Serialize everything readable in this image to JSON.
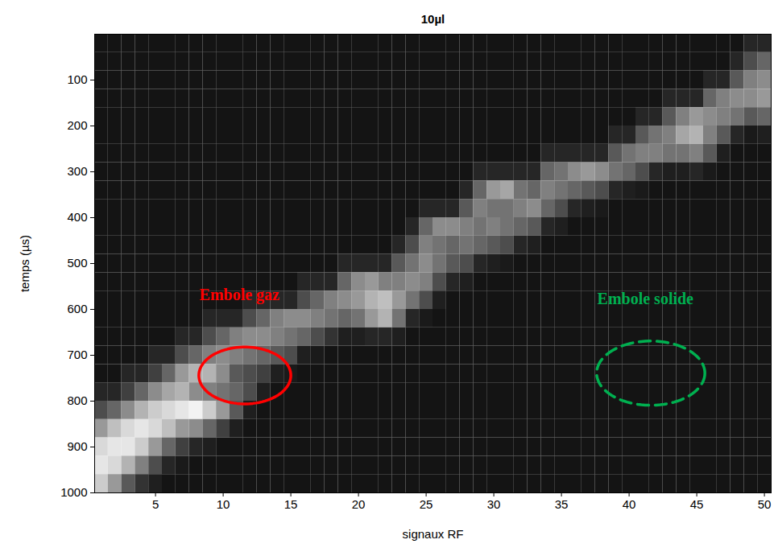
{
  "chart_data": {
    "type": "heatmap",
    "title": "10µl",
    "x_label": "signaux RF",
    "y_label": "temps (µs)",
    "xlim": [
      0.5,
      50.5
    ],
    "xticks": [
      5,
      10,
      15,
      20,
      25,
      30,
      35,
      40,
      45,
      50
    ],
    "ylim": [
      0,
      1000
    ],
    "yticks": [
      100,
      200,
      300,
      400,
      500,
      600,
      700,
      800,
      900,
      1000
    ],
    "value_range": [
      0,
      100
    ],
    "x": [
      1,
      2,
      3,
      4,
      5,
      6,
      7,
      8,
      9,
      10,
      11,
      12,
      13,
      14,
      15,
      16,
      17,
      18,
      19,
      20,
      21,
      22,
      23,
      24,
      25,
      26,
      27,
      28,
      29,
      30,
      31,
      32,
      33,
      34,
      35,
      36,
      37,
      38,
      39,
      40,
      41,
      42,
      43,
      44,
      45,
      46,
      47,
      48,
      49,
      50
    ],
    "y": [
      20,
      60,
      100,
      140,
      180,
      220,
      260,
      300,
      340,
      380,
      420,
      460,
      500,
      540,
      580,
      620,
      660,
      700,
      740,
      780,
      820,
      860,
      900,
      940,
      980
    ],
    "values": [
      [
        8,
        8,
        8,
        8,
        8,
        8,
        8,
        8,
        8,
        8,
        8,
        8,
        8,
        8,
        8,
        8,
        8,
        8,
        8,
        15,
        30,
        60,
        85,
        90,
        80
      ],
      [
        8,
        8,
        8,
        8,
        8,
        8,
        8,
        8,
        8,
        8,
        8,
        8,
        8,
        8,
        8,
        8,
        8,
        8,
        8,
        15,
        40,
        75,
        90,
        85,
        60
      ],
      [
        8,
        8,
        8,
        8,
        8,
        8,
        8,
        8,
        8,
        8,
        8,
        8,
        8,
        8,
        8,
        8,
        8,
        8,
        15,
        25,
        55,
        85,
        90,
        70,
        35
      ],
      [
        8,
        8,
        8,
        8,
        8,
        8,
        8,
        8,
        8,
        8,
        8,
        8,
        8,
        8,
        8,
        8,
        8,
        8,
        15,
        40,
        70,
        90,
        80,
        50,
        20
      ],
      [
        8,
        8,
        8,
        8,
        8,
        8,
        8,
        8,
        8,
        8,
        8,
        8,
        8,
        8,
        8,
        8,
        8,
        15,
        25,
        55,
        80,
        85,
        60,
        30,
        12
      ],
      [
        8,
        8,
        8,
        8,
        8,
        8,
        8,
        8,
        8,
        8,
        8,
        8,
        8,
        8,
        8,
        8,
        8,
        15,
        40,
        65,
        85,
        75,
        40,
        15,
        8
      ],
      [
        8,
        8,
        8,
        8,
        8,
        8,
        8,
        8,
        8,
        8,
        8,
        8,
        8,
        8,
        8,
        8,
        15,
        30,
        60,
        70,
        90,
        60,
        25,
        10,
        8
      ],
      [
        8,
        8,
        8,
        8,
        8,
        8,
        8,
        8,
        8,
        8,
        8,
        8,
        8,
        8,
        8,
        8,
        15,
        40,
        70,
        55,
        95,
        55,
        15,
        8,
        8
      ],
      [
        8,
        8,
        8,
        8,
        8,
        8,
        8,
        8,
        8,
        8,
        8,
        8,
        8,
        8,
        8,
        15,
        30,
        50,
        70,
        50,
        80,
        40,
        12,
        8,
        8
      ],
      [
        8,
        8,
        8,
        8,
        8,
        8,
        8,
        8,
        8,
        8,
        8,
        8,
        8,
        8,
        8,
        15,
        40,
        55,
        55,
        45,
        60,
        25,
        8,
        8,
        8
      ],
      [
        8,
        8,
        8,
        8,
        8,
        8,
        8,
        8,
        8,
        8,
        8,
        8,
        8,
        8,
        8,
        15,
        50,
        50,
        35,
        40,
        35,
        12,
        8,
        8,
        8
      ],
      [
        8,
        8,
        8,
        8,
        8,
        8,
        8,
        8,
        8,
        8,
        8,
        8,
        8,
        8,
        15,
        30,
        55,
        45,
        30,
        30,
        12,
        8,
        8,
        8,
        8
      ],
      [
        8,
        8,
        8,
        8,
        8,
        8,
        8,
        8,
        8,
        8,
        8,
        8,
        8,
        8,
        15,
        40,
        55,
        40,
        25,
        12,
        8,
        8,
        8,
        8,
        8
      ],
      [
        8,
        8,
        8,
        8,
        8,
        8,
        8,
        8,
        8,
        8,
        8,
        8,
        8,
        8,
        15,
        50,
        50,
        35,
        12,
        8,
        8,
        8,
        8,
        8,
        8
      ],
      [
        8,
        8,
        8,
        8,
        8,
        8,
        8,
        8,
        8,
        8,
        8,
        8,
        8,
        8,
        15,
        55,
        45,
        30,
        10,
        8,
        8,
        8,
        8,
        8,
        8
      ],
      [
        8,
        8,
        8,
        8,
        8,
        8,
        8,
        8,
        8,
        8,
        8,
        8,
        8,
        15,
        30,
        55,
        40,
        12,
        8,
        8,
        8,
        8,
        8,
        8,
        8
      ],
      [
        8,
        8,
        8,
        8,
        8,
        8,
        8,
        8,
        8,
        8,
        8,
        8,
        8,
        15,
        40,
        50,
        30,
        10,
        8,
        8,
        8,
        8,
        8,
        8,
        8
      ],
      [
        8,
        8,
        8,
        8,
        8,
        8,
        8,
        8,
        8,
        8,
        8,
        8,
        8,
        15,
        50,
        45,
        20,
        8,
        8,
        8,
        8,
        8,
        8,
        8,
        8
      ],
      [
        8,
        8,
        8,
        8,
        8,
        8,
        8,
        8,
        8,
        8,
        8,
        8,
        15,
        40,
        55,
        40,
        12,
        8,
        8,
        8,
        8,
        8,
        8,
        8,
        8
      ],
      [
        8,
        8,
        8,
        8,
        8,
        8,
        8,
        8,
        8,
        8,
        8,
        8,
        15,
        55,
        60,
        45,
        12,
        8,
        8,
        8,
        8,
        8,
        8,
        8,
        8
      ],
      [
        8,
        8,
        8,
        8,
        8,
        8,
        8,
        8,
        8,
        8,
        8,
        8,
        15,
        60,
        70,
        60,
        15,
        8,
        8,
        8,
        8,
        8,
        8,
        8,
        8
      ],
      [
        8,
        8,
        8,
        8,
        8,
        8,
        8,
        8,
        8,
        8,
        8,
        8,
        15,
        50,
        75,
        70,
        15,
        8,
        8,
        8,
        8,
        8,
        8,
        8,
        8
      ],
      [
        8,
        8,
        8,
        8,
        8,
        8,
        8,
        8,
        8,
        8,
        8,
        15,
        35,
        50,
        60,
        45,
        12,
        8,
        8,
        8,
        8,
        8,
        8,
        8,
        8
      ],
      [
        8,
        8,
        8,
        8,
        8,
        8,
        8,
        8,
        8,
        8,
        15,
        30,
        45,
        55,
        45,
        15,
        8,
        8,
        8,
        8,
        8,
        8,
        8,
        8,
        8
      ],
      [
        8,
        8,
        8,
        8,
        8,
        8,
        8,
        8,
        8,
        15,
        40,
        50,
        55,
        50,
        30,
        10,
        8,
        8,
        8,
        8,
        8,
        8,
        8,
        8,
        8
      ],
      [
        8,
        8,
        8,
        8,
        8,
        8,
        8,
        8,
        8,
        15,
        55,
        45,
        45,
        30,
        12,
        8,
        8,
        8,
        8,
        8,
        8,
        8,
        8,
        8,
        8
      ],
      [
        8,
        8,
        8,
        8,
        8,
        8,
        8,
        8,
        8,
        15,
        55,
        40,
        35,
        15,
        8,
        8,
        8,
        8,
        8,
        8,
        8,
        8,
        8,
        8,
        8
      ],
      [
        8,
        8,
        8,
        8,
        8,
        8,
        8,
        8,
        15,
        35,
        50,
        45,
        30,
        12,
        8,
        8,
        8,
        8,
        8,
        8,
        8,
        8,
        8,
        8,
        8
      ],
      [
        8,
        8,
        8,
        8,
        8,
        8,
        8,
        15,
        40,
        50,
        45,
        40,
        15,
        8,
        8,
        8,
        8,
        8,
        8,
        8,
        8,
        8,
        8,
        8,
        8
      ],
      [
        8,
        8,
        8,
        8,
        8,
        8,
        8,
        15,
        60,
        45,
        50,
        35,
        12,
        8,
        8,
        8,
        8,
        8,
        8,
        8,
        8,
        8,
        8,
        8,
        8
      ],
      [
        8,
        8,
        8,
        8,
        8,
        8,
        8,
        15,
        65,
        45,
        45,
        30,
        10,
        8,
        8,
        8,
        8,
        8,
        8,
        8,
        8,
        8,
        8,
        8,
        8
      ],
      [
        8,
        8,
        8,
        8,
        8,
        8,
        8,
        15,
        45,
        50,
        40,
        15,
        8,
        8,
        8,
        8,
        8,
        8,
        8,
        8,
        8,
        8,
        8,
        8,
        8
      ],
      [
        8,
        8,
        8,
        8,
        8,
        8,
        8,
        15,
        40,
        55,
        35,
        12,
        8,
        8,
        8,
        8,
        8,
        8,
        8,
        8,
        8,
        8,
        8,
        8,
        8
      ],
      [
        8,
        8,
        8,
        8,
        8,
        8,
        15,
        40,
        50,
        40,
        15,
        8,
        8,
        8,
        8,
        8,
        8,
        8,
        8,
        8,
        8,
        8,
        8,
        8,
        8
      ],
      [
        8,
        8,
        8,
        8,
        8,
        8,
        15,
        45,
        45,
        30,
        12,
        8,
        8,
        8,
        8,
        8,
        8,
        8,
        8,
        8,
        8,
        8,
        8,
        8,
        8
      ],
      [
        8,
        8,
        8,
        8,
        8,
        8,
        15,
        55,
        40,
        15,
        8,
        8,
        8,
        8,
        8,
        8,
        8,
        8,
        8,
        8,
        8,
        8,
        8,
        8,
        8
      ],
      [
        8,
        8,
        8,
        8,
        8,
        8,
        15,
        60,
        35,
        12,
        8,
        8,
        8,
        8,
        8,
        8,
        8,
        8,
        8,
        8,
        8,
        8,
        8,
        8,
        8
      ],
      [
        8,
        8,
        8,
        8,
        8,
        8,
        15,
        55,
        30,
        10,
        8,
        8,
        8,
        8,
        8,
        8,
        8,
        8,
        8,
        8,
        8,
        8,
        8,
        8,
        8
      ],
      [
        8,
        8,
        8,
        8,
        8,
        15,
        35,
        45,
        15,
        8,
        8,
        8,
        8,
        8,
        8,
        8,
        8,
        8,
        8,
        8,
        8,
        8,
        8,
        8,
        8
      ],
      [
        8,
        8,
        8,
        8,
        8,
        15,
        45,
        40,
        12,
        8,
        8,
        8,
        8,
        8,
        8,
        8,
        8,
        8,
        8,
        8,
        8,
        8,
        8,
        8,
        8
      ],
      [
        8,
        8,
        8,
        8,
        15,
        35,
        50,
        30,
        10,
        8,
        8,
        8,
        8,
        8,
        8,
        8,
        8,
        8,
        8,
        8,
        8,
        8,
        8,
        8,
        8
      ],
      [
        8,
        8,
        8,
        8,
        15,
        45,
        50,
        15,
        8,
        8,
        8,
        8,
        8,
        8,
        8,
        8,
        8,
        8,
        8,
        8,
        8,
        8,
        8,
        8,
        8
      ],
      [
        8,
        8,
        8,
        15,
        35,
        50,
        45,
        12,
        8,
        8,
        8,
        8,
        8,
        8,
        8,
        8,
        8,
        8,
        8,
        8,
        8,
        8,
        8,
        8,
        8
      ],
      [
        8,
        8,
        8,
        15,
        50,
        65,
        45,
        12,
        8,
        8,
        8,
        8,
        8,
        8,
        8,
        8,
        8,
        8,
        8,
        8,
        8,
        8,
        8,
        8,
        8
      ],
      [
        8,
        8,
        8,
        15,
        60,
        70,
        50,
        15,
        8,
        8,
        8,
        8,
        8,
        8,
        8,
        8,
        8,
        8,
        8,
        8,
        8,
        8,
        8,
        8,
        8
      ],
      [
        8,
        8,
        15,
        40,
        55,
        50,
        35,
        10,
        8,
        8,
        8,
        8,
        8,
        8,
        8,
        8,
        8,
        8,
        8,
        8,
        8,
        8,
        8,
        8,
        8
      ],
      [
        8,
        8,
        15,
        50,
        50,
        35,
        12,
        8,
        8,
        8,
        8,
        8,
        8,
        8,
        8,
        8,
        8,
        8,
        8,
        8,
        8,
        8,
        8,
        8,
        8
      ],
      [
        8,
        15,
        35,
        55,
        45,
        15,
        8,
        8,
        8,
        8,
        8,
        8,
        8,
        8,
        8,
        8,
        8,
        8,
        8,
        8,
        8,
        8,
        8,
        8,
        8
      ],
      [
        15,
        30,
        50,
        55,
        35,
        10,
        8,
        8,
        8,
        8,
        8,
        8,
        8,
        8,
        8,
        8,
        8,
        8,
        8,
        8,
        8,
        8,
        8,
        8,
        8
      ],
      [
        15,
        40,
        55,
        60,
        40,
        12,
        8,
        8,
        8,
        8,
        8,
        8,
        8,
        8,
        8,
        8,
        8,
        8,
        8,
        8,
        8,
        8,
        8,
        8,
        8
      ]
    ],
    "annotations": [
      {
        "text": "Embole gaz",
        "x": 11.2,
        "y": 568,
        "color": "#ff0000",
        "ellipse": {
          "x": 11.6,
          "y": 744,
          "rx": 3.4,
          "ry": 62,
          "line_style": "solid"
        }
      },
      {
        "text": "Embole solide",
        "x": 41.2,
        "y": 577,
        "color": "#00b050",
        "ellipse": {
          "x": 41.6,
          "y": 739,
          "rx": 4.0,
          "ry": 70,
          "line_style": "dashed"
        }
      }
    ]
  }
}
